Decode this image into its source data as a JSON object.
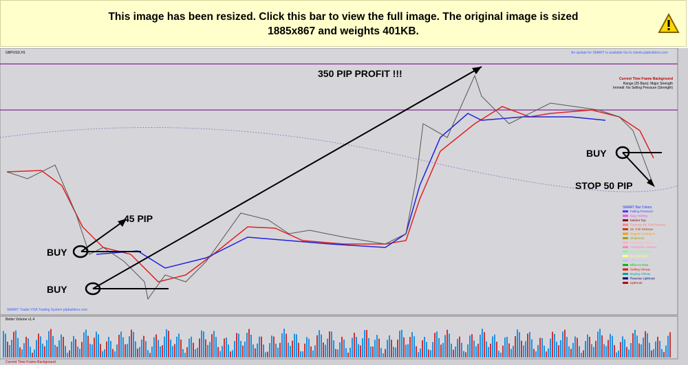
{
  "banner": {
    "line1": "This image has been resized. Click this bar to view the full image. The original image is sized",
    "line2": "1885x867 and weights 401KB."
  },
  "chart": {
    "symbol": "GBPUSD,H1",
    "profit": "350 PIP PROFIT !!!",
    "pip45": "45 PIP",
    "buy1": "BUY",
    "buy2": "BUY",
    "buy3": "BUY",
    "stop": "STOP 50 PIP",
    "update_note": "An update for SMART is available Go to clients.ptpbuilders.com",
    "background_title": "Current Time Frame Background",
    "background_lines": [
      "Range (25 Bars): Major Strength",
      "Immedi: No Selling Pressure (Strength)"
    ],
    "legend_title": "SMART Bar Colors",
    "legend": [
      {
        "name": "Falling Pressure",
        "color": "#4040ff"
      },
      {
        "name": "Bag Holding",
        "color": "#ff40ff"
      },
      {
        "name": "Market Top",
        "color": "#800000"
      },
      {
        "name": "Reverse Mr. Pull Release",
        "color": "#ff8080"
      },
      {
        "name": "Mr. Pull Release",
        "color": "#c04000"
      },
      {
        "name": "Supply Coming In",
        "color": "#ff9900"
      },
      {
        "name": "ShakeOut",
        "color": "#a0a000"
      },
      {
        "name": "Stopping Volume",
        "color": "#ffb0b0"
      },
      {
        "name": "Absorption Volume",
        "color": "#ff80c0"
      },
      {
        "name": "Test of Supply",
        "color": "#80ff80"
      },
      {
        "name": "No Demand",
        "color": "#ffff80"
      },
      {
        "name": "Effort to Fall",
        "color": "#c0c0ff"
      },
      {
        "name": "Effort to Rise",
        "color": "#00c000"
      },
      {
        "name": "Selling Climax",
        "color": "#ff0000"
      },
      {
        "name": "Buying Climax",
        "color": "#00a0a0"
      },
      {
        "name": "Reverse Upthrust",
        "color": "#000080"
      },
      {
        "name": "Upthrust",
        "color": "#c00000"
      }
    ],
    "system_note": "SMART Trader VSA Trading System ptpbuilders.com",
    "volume_label": "Better Volume v1.4",
    "footer_left": "Current Time Frame Background"
  }
}
